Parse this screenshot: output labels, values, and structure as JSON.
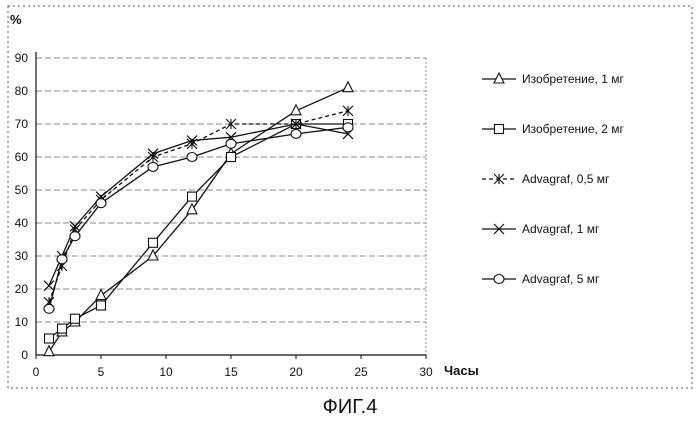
{
  "chart_data": {
    "type": "line",
    "ylabel": "%",
    "xlabel": "Часы",
    "xlim": [
      0,
      30
    ],
    "ylim": [
      0,
      90
    ],
    "x_ticks": [
      0,
      5,
      10,
      15,
      20,
      25,
      30
    ],
    "y_ticks": [
      0,
      10,
      20,
      30,
      40,
      50,
      60,
      70,
      80,
      90
    ],
    "grid": "horizontal dashed",
    "legend_position": "right",
    "series": [
      {
        "name": "Изобретение, 1 мг",
        "marker": "triangle",
        "x": [
          1,
          2,
          3,
          5,
          9,
          12,
          15,
          20,
          24
        ],
        "y": [
          1,
          7,
          10,
          18,
          30,
          44,
          61,
          74,
          81
        ]
      },
      {
        "name": "Изобретение, 2 мг",
        "marker": "square",
        "x": [
          1,
          2,
          3,
          5,
          9,
          12,
          15,
          20,
          24
        ],
        "y": [
          5,
          8,
          11,
          15,
          34,
          48,
          60,
          70,
          70
        ]
      },
      {
        "name": "Advagraf, 0,5 мг",
        "marker": "asterisk",
        "x": [
          1,
          2,
          3,
          5,
          9,
          12,
          15,
          20,
          24
        ],
        "y": [
          16,
          27,
          38,
          47,
          60,
          64,
          70,
          70,
          74
        ]
      },
      {
        "name": "Advagraf, 1 мг",
        "marker": "x",
        "x": [
          1,
          2,
          3,
          5,
          9,
          12,
          15,
          20,
          24
        ],
        "y": [
          21,
          30,
          39,
          48,
          61,
          65,
          66,
          70,
          67
        ]
      },
      {
        "name": "Advagraf, 5 мг",
        "marker": "circle",
        "x": [
          1,
          2,
          3,
          5,
          9,
          12,
          15,
          20,
          24
        ],
        "y": [
          14,
          29,
          36,
          46,
          57,
          60,
          64,
          67,
          69
        ]
      }
    ]
  },
  "caption": "ФИГ.4"
}
